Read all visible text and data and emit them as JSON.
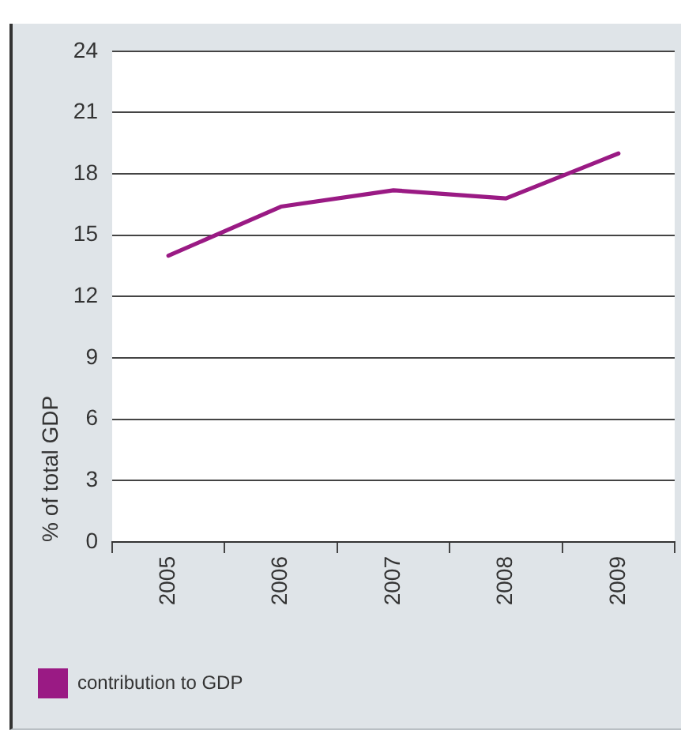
{
  "chart_data": {
    "type": "line",
    "categories": [
      "2005",
      "2006",
      "2007",
      "2008",
      "2009"
    ],
    "series": [
      {
        "name": "contribution to GDP",
        "color": "#9a1a84",
        "values": [
          14.0,
          16.4,
          17.2,
          16.8,
          19.0
        ]
      }
    ],
    "ylabel": "% of total GDP",
    "ylim": [
      0,
      24
    ],
    "yticks": [
      0,
      3,
      6,
      9,
      12,
      15,
      18,
      21,
      24
    ],
    "grid": "y",
    "legend": "bottom left",
    "marker": "none"
  }
}
